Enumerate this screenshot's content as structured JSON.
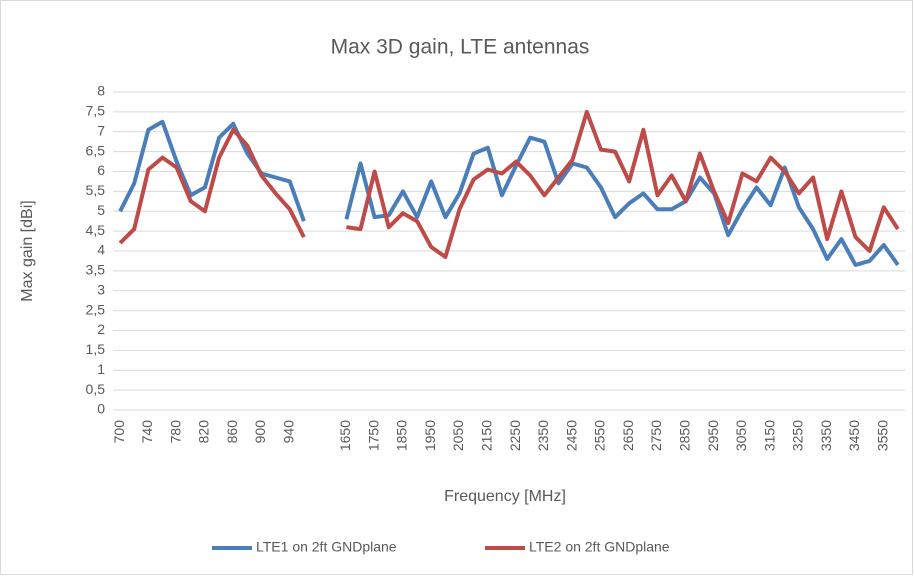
{
  "chart_data": {
    "type": "line",
    "title": "Max 3D gain, LTE antennas",
    "xlabel": "Frequency [MHz]",
    "ylabel": "Max gain [dBi]",
    "categories": [
      "700",
      null,
      "740",
      null,
      "780",
      null,
      "820",
      null,
      "860",
      null,
      "900",
      null,
      "940",
      null,
      null,
      null,
      "1650",
      null,
      "1750",
      null,
      "1850",
      null,
      "1950",
      null,
      "2050",
      null,
      "2150",
      null,
      "2250",
      null,
      "2350",
      null,
      "2450",
      null,
      "2550",
      null,
      "2650",
      null,
      "2750",
      null,
      "2850",
      null,
      "2950",
      null,
      "3050",
      null,
      "3150",
      null,
      "3250",
      null,
      "3350",
      null,
      "3450",
      null,
      "3550",
      null
    ],
    "series": [
      {
        "name": "LTE1 on 2ft GNDplane",
        "color": "#4a7ebb",
        "values": [
          5.0,
          5.7,
          7.05,
          7.25,
          6.25,
          5.4,
          5.6,
          6.85,
          7.2,
          6.45,
          5.95,
          5.85,
          5.75,
          4.75,
          null,
          null,
          4.8,
          6.2,
          4.85,
          4.9,
          5.5,
          4.85,
          5.75,
          4.85,
          5.45,
          6.45,
          6.6,
          5.4,
          6.15,
          6.85,
          6.75,
          5.7,
          6.2,
          6.1,
          5.6,
          4.85,
          5.2,
          5.45,
          5.05,
          5.05,
          5.25,
          5.85,
          5.45,
          4.4,
          5.05,
          5.6,
          5.15,
          6.1,
          5.1,
          4.55,
          3.8,
          4.3,
          3.65,
          3.75,
          4.15,
          3.65
        ]
      },
      {
        "name": "LTE2 on 2ft GNDplane",
        "color": "#be4b48",
        "values": [
          4.2,
          4.55,
          6.05,
          6.35,
          6.1,
          5.25,
          5.0,
          6.35,
          7.05,
          6.65,
          5.9,
          5.45,
          5.05,
          4.35,
          null,
          null,
          4.6,
          4.55,
          6.0,
          4.6,
          4.95,
          4.75,
          4.1,
          3.85,
          5.05,
          5.8,
          6.05,
          5.95,
          6.25,
          5.9,
          5.4,
          5.85,
          6.3,
          7.5,
          6.55,
          6.5,
          5.75,
          7.05,
          5.4,
          5.9,
          5.25,
          6.45,
          5.5,
          4.7,
          5.95,
          5.75,
          6.35,
          6.0,
          5.45,
          5.85,
          4.3,
          5.5,
          4.35,
          4.0,
          5.1,
          4.55
        ]
      }
    ],
    "ylim": [
      0,
      8
    ],
    "yticks": [
      0,
      {
        "value": 0.5,
        "label": "0,5"
      },
      1,
      {
        "value": 1.5,
        "label": "1,5"
      },
      2,
      {
        "value": 2.5,
        "label": "2,5"
      },
      3,
      {
        "value": 3.5,
        "label": "3,5"
      },
      4,
      {
        "value": 4.5,
        "label": "4,5"
      },
      5,
      {
        "value": 5.5,
        "label": "5,5"
      },
      6,
      {
        "value": 6.5,
        "label": "6,5"
      },
      7,
      {
        "value": 7.5,
        "label": "7,5"
      },
      8
    ],
    "grid": true,
    "legend": "bottom"
  }
}
